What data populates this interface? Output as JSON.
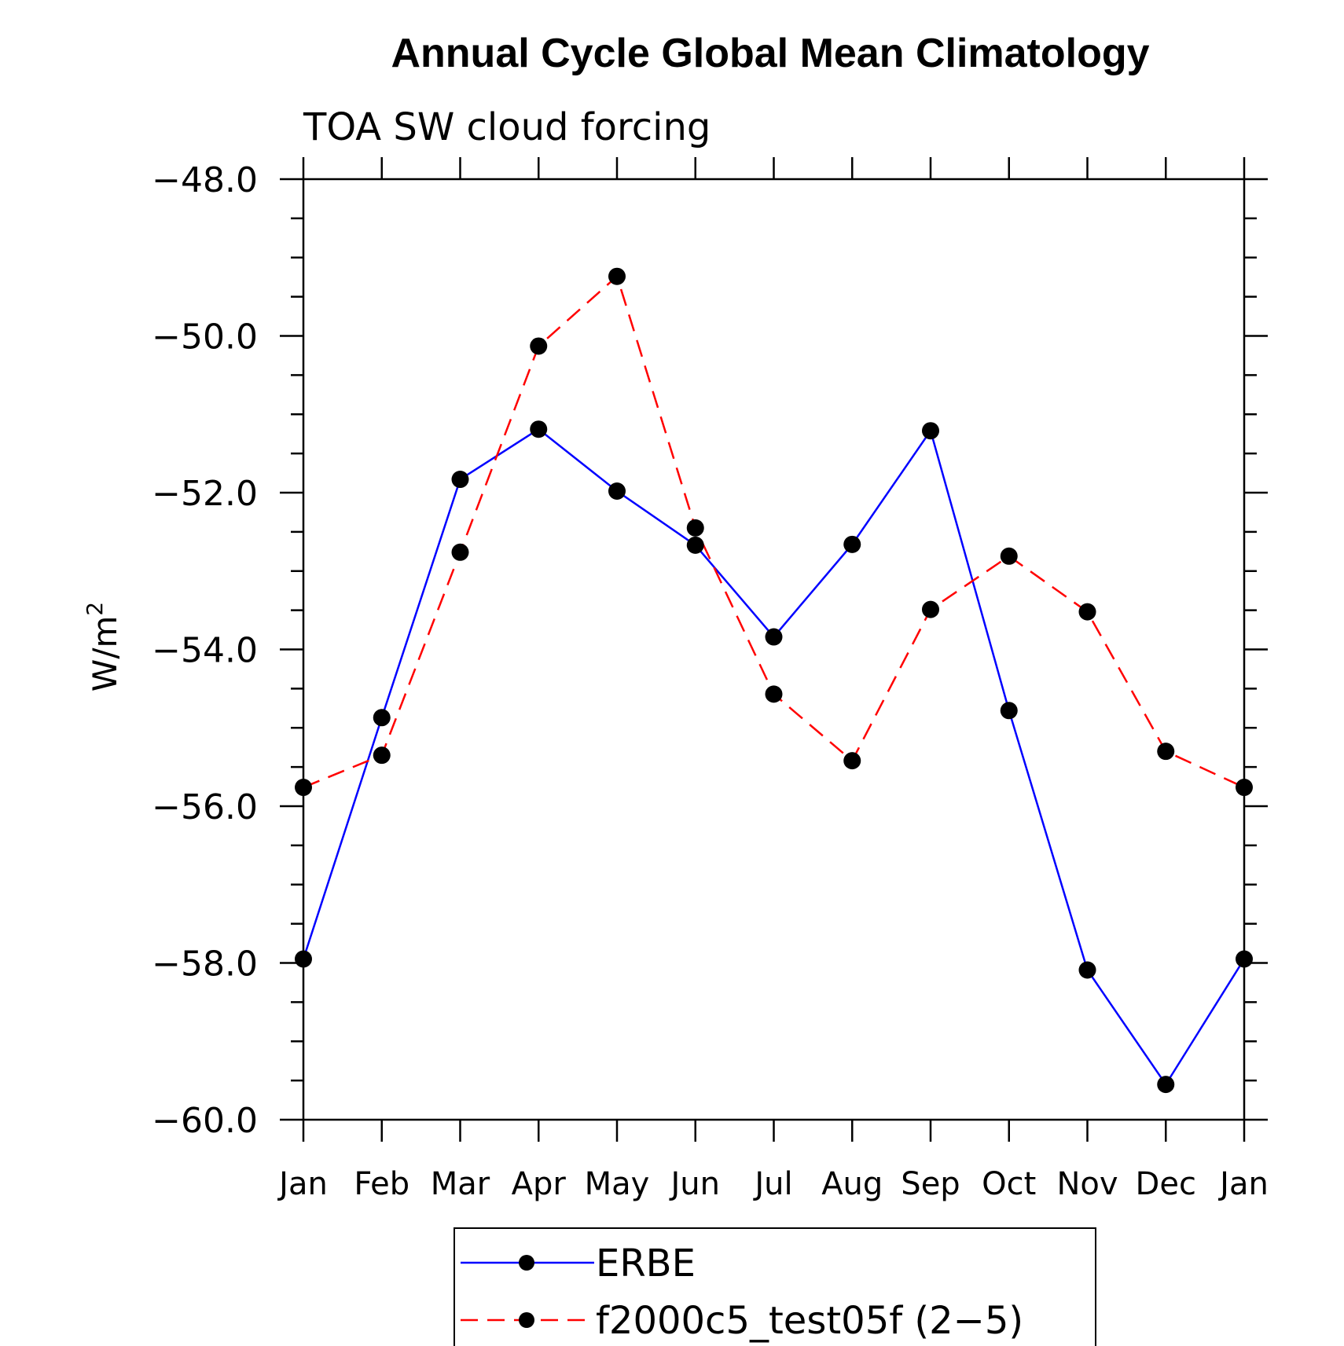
{
  "chart_data": {
    "type": "line",
    "title": "Annual Cycle Global Mean Climatology",
    "subtitle": "TOA SW cloud forcing",
    "ylabel_base": "W/m",
    "ylabel_sup": "2",
    "ylim": [
      -60,
      -48
    ],
    "yticks": [
      "−48.0",
      "−50.0",
      "−52.0",
      "−54.0",
      "−56.0",
      "−58.0",
      "−60.0"
    ],
    "ytick_values": [
      -48,
      -50,
      -52,
      -54,
      -56,
      -58,
      -60
    ],
    "categories": [
      "Jan",
      "Feb",
      "Mar",
      "Apr",
      "May",
      "Jun",
      "Jul",
      "Aug",
      "Sep",
      "Oct",
      "Nov",
      "Dec",
      "Jan"
    ],
    "grid": false,
    "legend_position": "bottom",
    "series": [
      {
        "name": "ERBE",
        "color": "#0000ff",
        "dash": "solid",
        "values": [
          -57.95,
          -54.87,
          -51.83,
          -51.19,
          -51.98,
          -52.67,
          -53.84,
          -52.66,
          -51.21,
          -54.78,
          -58.09,
          -59.55,
          -57.95
        ]
      },
      {
        "name": "f2000c5_test05f (2−5)",
        "color": "#ff0000",
        "dash": "dashed",
        "values": [
          -55.76,
          -55.35,
          -52.76,
          -50.13,
          -49.24,
          -52.45,
          -54.57,
          -55.42,
          -53.49,
          -52.81,
          -53.52,
          -55.3,
          -55.76
        ]
      }
    ]
  }
}
